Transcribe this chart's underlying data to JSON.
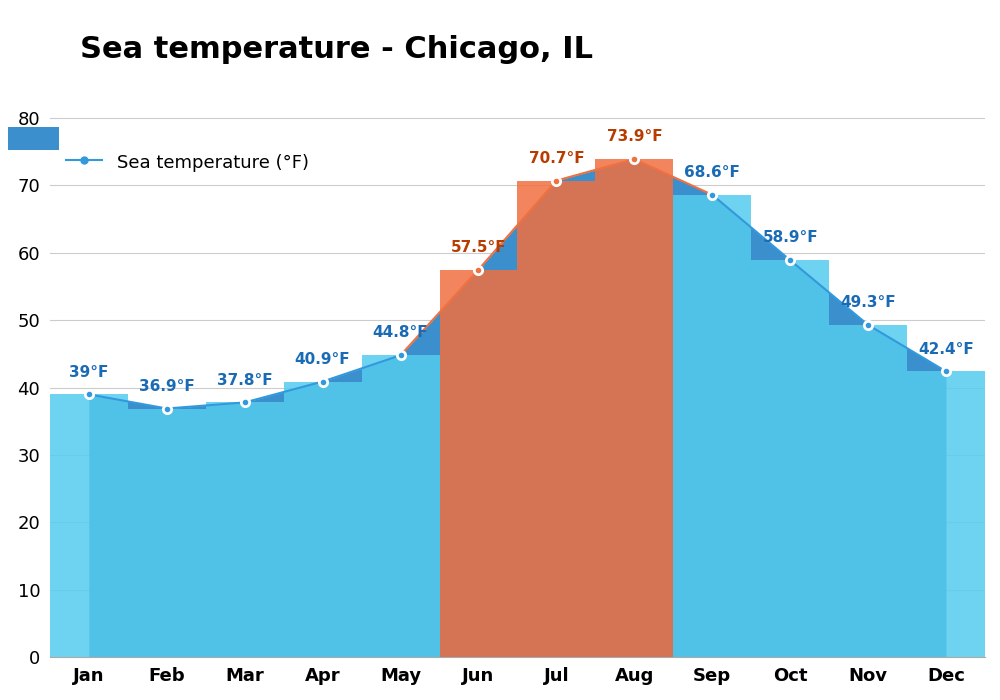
{
  "title": "Sea temperature - Chicago, IL",
  "legend_label": "Sea temperature (°F)",
  "months": [
    "Jan",
    "Feb",
    "Mar",
    "Apr",
    "May",
    "Jun",
    "Jul",
    "Aug",
    "Sep",
    "Oct",
    "Nov",
    "Dec"
  ],
  "values": [
    39.0,
    36.9,
    37.8,
    40.9,
    44.8,
    57.5,
    70.7,
    73.9,
    68.6,
    58.9,
    49.3,
    42.4
  ],
  "labels": [
    "39°F",
    "36.9°F",
    "37.8°F",
    "40.9°F",
    "44.8°F",
    "57.5°F",
    "70.7°F",
    "73.9°F",
    "68.6°F",
    "58.9°F",
    "49.3°F",
    "42.4°F"
  ],
  "hot_months_idx": [
    5,
    6,
    7
  ],
  "label_colors_cool": "#1a6bb5",
  "label_colors_hot": "#b83c00",
  "color_dark_blue": "#3a8fcc",
  "color_light_cyan": "#55ccee",
  "color_orange": "#f07040",
  "color_line_cool": "#3399dd",
  "color_line_hot": "#f07040",
  "ylim": [
    0,
    88
  ],
  "yticks": [
    0,
    10,
    20,
    30,
    40,
    50,
    60,
    70,
    80
  ],
  "background_color": "#ffffff",
  "grid_color": "#cccccc",
  "title_fontsize": 22,
  "label_fontsize": 11,
  "tick_fontsize": 13,
  "legend_fontsize": 13
}
